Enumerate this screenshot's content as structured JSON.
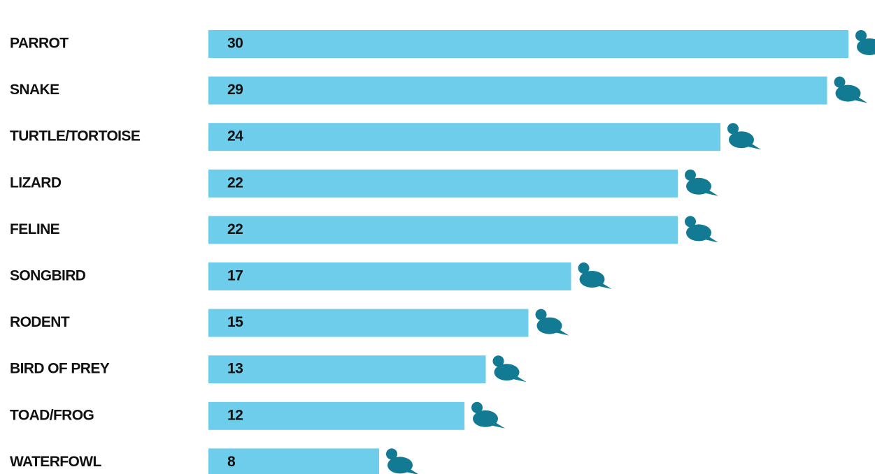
{
  "chart_data": {
    "type": "bar",
    "orientation": "horizontal",
    "categories": [
      "PARROT",
      "SNAKE",
      "TURTLE/TORTOISE",
      "LIZARD",
      "FELINE",
      "SONGBIRD",
      "RODENT",
      "BIRD OF PREY",
      "TOAD/FROG",
      "WATERFOWL"
    ],
    "values": [
      30,
      29,
      24,
      22,
      22,
      17,
      15,
      13,
      12,
      8
    ],
    "color": "#6dcdea",
    "icon_color": "#127a93",
    "xlim": [
      0,
      30
    ]
  }
}
